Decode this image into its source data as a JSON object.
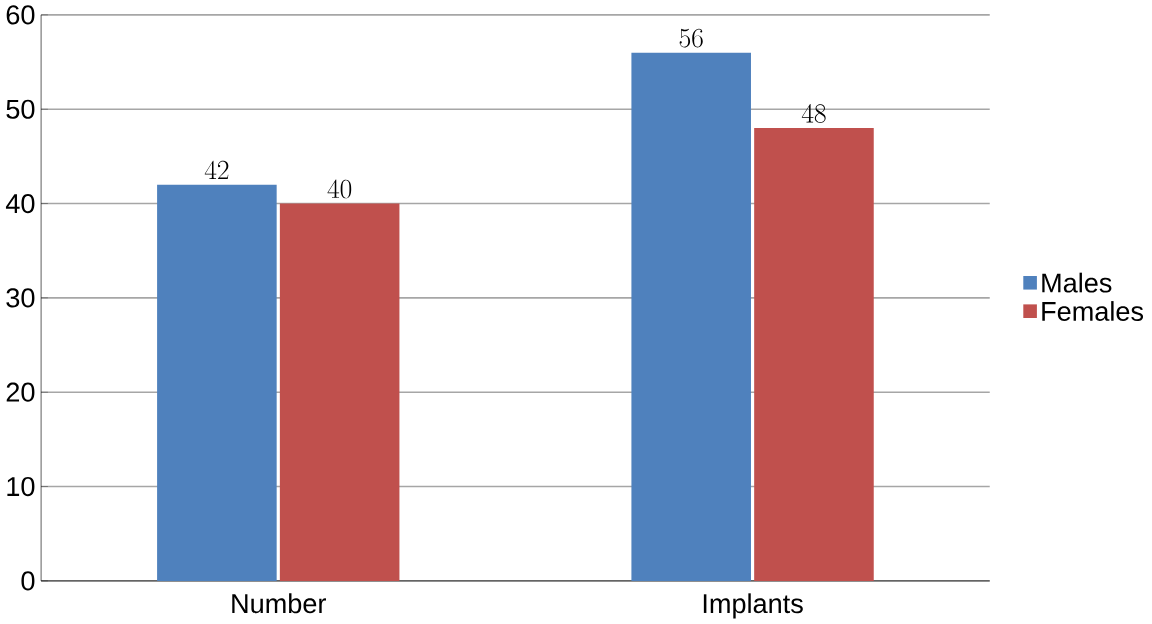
{
  "chart_data": {
    "type": "bar",
    "categories": [
      "Number",
      "Implants"
    ],
    "series": [
      {
        "name": "Males",
        "color": "#4f81bd",
        "values": [
          42,
          56
        ]
      },
      {
        "name": "Females",
        "color": "#c0504d",
        "values": [
          40,
          48
        ]
      }
    ],
    "ylim": [
      0,
      60
    ],
    "yticks": [
      0,
      10,
      20,
      30,
      40,
      50,
      60
    ],
    "grid": "y",
    "legend": "right",
    "data_labels": true
  }
}
